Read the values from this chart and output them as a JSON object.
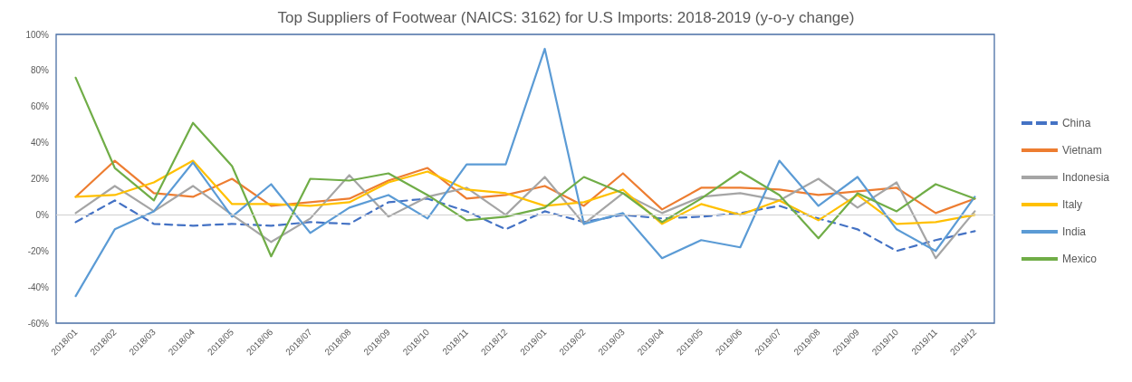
{
  "chart_data": {
    "type": "line",
    "title": "Top Suppliers of Footwear (NAICS: 3162) for U.S Imports: 2018-2019 (y-o-y change)",
    "categories": [
      "2018/01",
      "2018/02",
      "2018/03",
      "2018/04",
      "2018/05",
      "2018/06",
      "2018/07",
      "2018/08",
      "2018/09",
      "2018/10",
      "2018/11",
      "2018/12",
      "2019/01",
      "2019/02",
      "2019/03",
      "2019/04",
      "2019/05",
      "2019/06",
      "2019/07",
      "2019/08",
      "2019/09",
      "2019/10",
      "2019/11",
      "2019/12"
    ],
    "series": [
      {
        "name": "China",
        "color": "#4472c4",
        "line_style": "dashed",
        "values": [
          -4,
          8,
          -5,
          -6,
          -5,
          -6,
          -4,
          -5,
          7,
          9,
          2,
          -8,
          2,
          -4,
          0,
          -2,
          -1,
          1,
          5,
          -2,
          -8,
          -20,
          -14,
          -9
        ]
      },
      {
        "name": "Vietnam",
        "color": "#ed7d31",
        "values": [
          10,
          30,
          12,
          10,
          20,
          5,
          7,
          9,
          19,
          26,
          9,
          11,
          16,
          5,
          23,
          3,
          15,
          15,
          14,
          11,
          13,
          15,
          1,
          9
        ]
      },
      {
        "name": "Indonesia",
        "color": "#a5a5a5",
        "values": [
          1,
          16,
          2,
          16,
          0,
          -15,
          -2,
          22,
          -1,
          10,
          15,
          0,
          21,
          -5,
          12,
          1,
          10,
          12,
          8,
          20,
          4,
          18,
          -24,
          2
        ]
      },
      {
        "name": "Italy",
        "color": "#ffc000",
        "values": [
          10,
          11,
          18,
          30,
          6,
          6,
          5,
          7,
          18,
          24,
          14,
          12,
          5,
          7,
          14,
          -5,
          6,
          0,
          8,
          -3,
          11,
          -5,
          -4,
          0
        ]
      },
      {
        "name": "India",
        "color": "#5b9bd5",
        "values": [
          -45,
          -8,
          2,
          29,
          -1,
          17,
          -10,
          4,
          11,
          -2,
          28,
          28,
          92,
          -5,
          1,
          -24,
          -14,
          -18,
          30,
          5,
          21,
          -8,
          -20,
          10
        ]
      },
      {
        "name": "Mexico",
        "color": "#70ad47",
        "values": [
          76,
          26,
          8,
          51,
          27,
          -23,
          20,
          19,
          23,
          11,
          -3,
          -1,
          4,
          21,
          12,
          -4,
          9,
          24,
          11,
          -13,
          12,
          2,
          17,
          9
        ]
      }
    ],
    "ylim": [
      -60,
      100
    ],
    "yticks": [
      {
        "value": -60,
        "label": "-60%"
      },
      {
        "value": -40,
        "label": "-40%"
      },
      {
        "value": -20,
        "label": "-20%"
      },
      {
        "value": 0,
        "label": "0%"
      },
      {
        "value": 20,
        "label": "20%"
      },
      {
        "value": 40,
        "label": "40%"
      },
      {
        "value": 60,
        "label": "60%"
      },
      {
        "value": 80,
        "label": "80%"
      },
      {
        "value": 100,
        "label": "100%"
      }
    ],
    "ref_lines": [
      {
        "axis": "y",
        "value": 0,
        "color": "#d0d0d0"
      }
    ],
    "grid": false,
    "legend": "right",
    "marker": "none"
  }
}
